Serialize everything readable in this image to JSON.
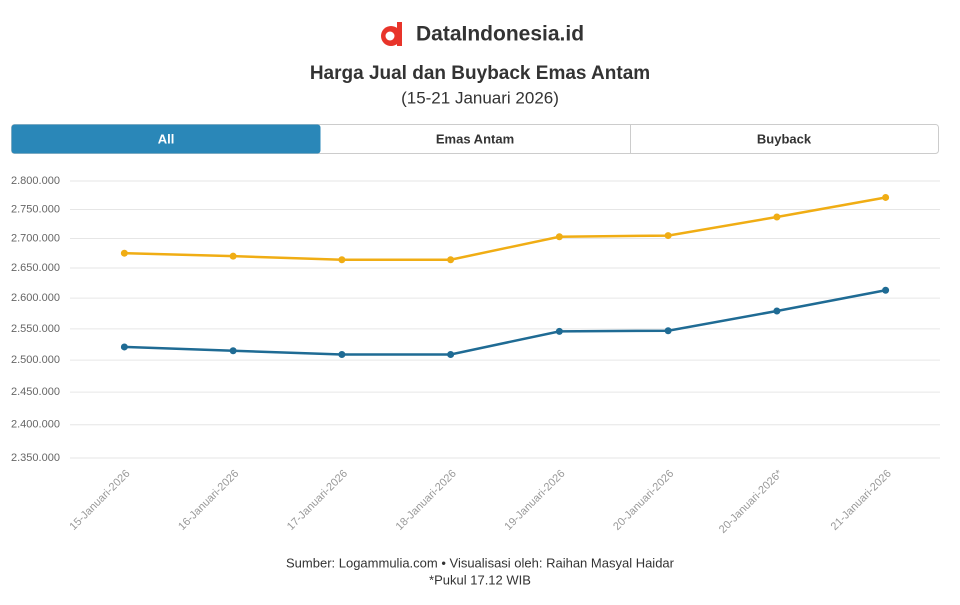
{
  "brand": "DataIndonesia.id",
  "tabs": [
    "All"
  ],
  "footer": {
    "source": "Sumber: Logammulia.com • Visualisasi oleh: Raihan Masyal Haidar",
    "note": "*Pukul 17.12 WIB"
  },
  "chart_data": {
    "type": "line",
    "title": "Harga Jual dan Buyback Emas Antam",
    "subtitle": "(15-21 Januari 2026)",
    "categories": [
      "15-Januari-2026",
      "16-Januari-2026",
      "17-Januari-2026",
      "18-Januari-2026",
      "19-Januari-2026",
      "20-Januari-2026",
      "20-Januari-2026*",
      "21-Januari-2026"
    ],
    "series": [
      {
        "name": "Emas Antam",
        "color": "#f0ad14",
        "values": [
          2675000,
          2670000,
          2664000,
          2664000,
          2703000,
          2705000,
          2737000,
          2771000
        ]
      },
      {
        "name": "Buyback",
        "color": "#1f6b94",
        "values": [
          2521000,
          2515000,
          2509000,
          2509000,
          2546000,
          2547000,
          2579000,
          2613000
        ]
      }
    ],
    "ylim": [
      2350000,
      2800000
    ],
    "log": true,
    "grid": true,
    "yticks": [
      {
        "value": 2350000,
        "label": "2.350.000"
      },
      {
        "value": 2400000,
        "label": "2.400.000"
      },
      {
        "value": 2450000,
        "label": "2.450.000"
      },
      {
        "value": 2500000,
        "label": "2.500.000"
      },
      {
        "value": 2550000,
        "label": "2.550.000"
      },
      {
        "value": 2600000,
        "label": "2.600.000"
      },
      {
        "value": 2650000,
        "label": "2.650.000"
      },
      {
        "value": 2700000,
        "label": "2.700.000"
      },
      {
        "value": 2750000,
        "label": "2.750.000"
      },
      {
        "value": 2800000,
        "label": "2.800.000"
      }
    ]
  }
}
